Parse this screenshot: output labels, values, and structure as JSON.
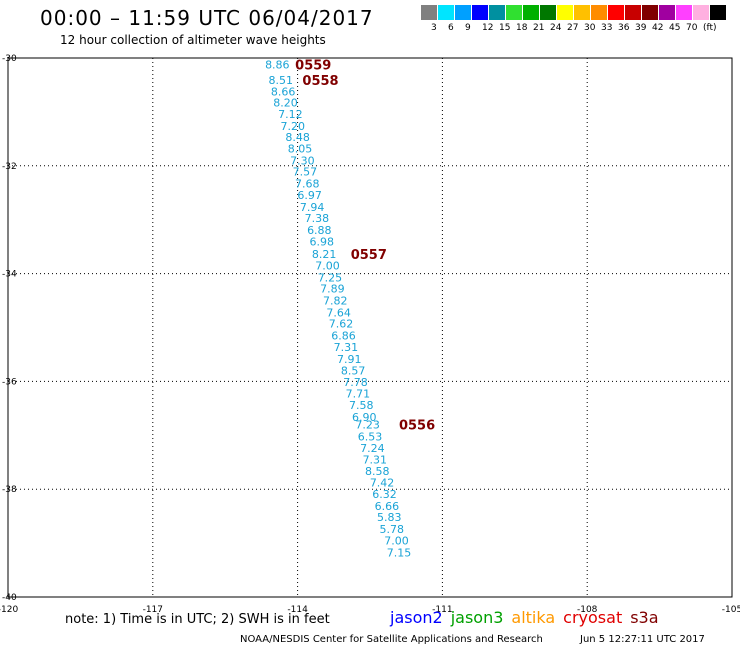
{
  "title": "00:00 – 11:59 UTC 06/04/2017",
  "subtitle": "12 hour collection of altimeter wave heights",
  "legend": {
    "colors": [
      "#808080",
      "#00e5ff",
      "#00a0ff",
      "#0000ff",
      "#0090a0",
      "#30e030",
      "#00b000",
      "#007800",
      "#ffff00",
      "#ffc000",
      "#ff8c00",
      "#ff0000",
      "#c80000",
      "#800000",
      "#a000a0",
      "#ff40ff",
      "#ffb0e0",
      "#000000"
    ],
    "labels": [
      "3",
      "6",
      "9",
      "12",
      "15",
      "18",
      "21",
      "24",
      "27",
      "30",
      "33",
      "36",
      "39",
      "42",
      "45",
      "70",
      "(ft)"
    ]
  },
  "axes": {
    "lat_ticks": [
      "-30",
      "-32",
      "-34",
      "-36",
      "-38",
      "-40"
    ],
    "lon_ticks": [
      "-120",
      "-117",
      "-114",
      "-111",
      "-108",
      "-105"
    ]
  },
  "heights": [
    {
      "v": "8.86",
      "lon": -114.42,
      "lat": -30.12
    },
    {
      "v": "8.51",
      "lon": -114.35,
      "lat": -30.41
    },
    {
      "v": "8.66",
      "lon": -114.3,
      "lat": -30.62
    },
    {
      "v": "8.20",
      "lon": -114.25,
      "lat": -30.83
    },
    {
      "v": "7.12",
      "lon": -114.15,
      "lat": -31.04
    },
    {
      "v": "7.20",
      "lon": -114.1,
      "lat": -31.26
    },
    {
      "v": "8.48",
      "lon": -114.0,
      "lat": -31.47
    },
    {
      "v": "8.05",
      "lon": -113.95,
      "lat": -31.68
    },
    {
      "v": "7.30",
      "lon": -113.9,
      "lat": -31.9
    },
    {
      "v": "7.57",
      "lon": -113.85,
      "lat": -32.11
    },
    {
      "v": "7.68",
      "lon": -113.8,
      "lat": -32.33
    },
    {
      "v": "6.97",
      "lon": -113.75,
      "lat": -32.54
    },
    {
      "v": "7.94",
      "lon": -113.7,
      "lat": -32.76
    },
    {
      "v": "7.38",
      "lon": -113.6,
      "lat": -32.97
    },
    {
      "v": "6.88",
      "lon": -113.55,
      "lat": -33.19
    },
    {
      "v": "6.98",
      "lon": -113.5,
      "lat": -33.4
    },
    {
      "v": "8.21",
      "lon": -113.45,
      "lat": -33.64
    },
    {
      "v": "7.00",
      "lon": -113.38,
      "lat": -33.85
    },
    {
      "v": "7.25",
      "lon": -113.33,
      "lat": -34.07
    },
    {
      "v": "7.89",
      "lon": -113.28,
      "lat": -34.28
    },
    {
      "v": "7.82",
      "lon": -113.22,
      "lat": -34.5
    },
    {
      "v": "7.64",
      "lon": -113.15,
      "lat": -34.72
    },
    {
      "v": "7.62",
      "lon": -113.1,
      "lat": -34.93
    },
    {
      "v": "6.86",
      "lon": -113.05,
      "lat": -35.15
    },
    {
      "v": "7.31",
      "lon": -113.0,
      "lat": -35.36
    },
    {
      "v": "7.91",
      "lon": -112.93,
      "lat": -35.58
    },
    {
      "v": "8.57",
      "lon": -112.85,
      "lat": -35.8
    },
    {
      "v": "7.78",
      "lon": -112.8,
      "lat": -36.01
    },
    {
      "v": "7.71",
      "lon": -112.75,
      "lat": -36.22
    },
    {
      "v": "7.58",
      "lon": -112.68,
      "lat": -36.44
    },
    {
      "v": "6.90",
      "lon": -112.62,
      "lat": -36.66
    },
    {
      "v": "7.23",
      "lon": -112.55,
      "lat": -36.8
    },
    {
      "v": "6.53",
      "lon": -112.5,
      "lat": -37.02
    },
    {
      "v": "7.24",
      "lon": -112.45,
      "lat": -37.24
    },
    {
      "v": "7.31",
      "lon": -112.4,
      "lat": -37.45
    },
    {
      "v": "8.58",
      "lon": -112.35,
      "lat": -37.66
    },
    {
      "v": "7.42",
      "lon": -112.25,
      "lat": -37.88
    },
    {
      "v": "6.32",
      "lon": -112.2,
      "lat": -38.09
    },
    {
      "v": "6.66",
      "lon": -112.15,
      "lat": -38.31
    },
    {
      "v": "5.83",
      "lon": -112.1,
      "lat": -38.52
    },
    {
      "v": "5.78",
      "lon": -112.05,
      "lat": -38.74
    },
    {
      "v": "7.00",
      "lon": -111.95,
      "lat": -38.95
    },
    {
      "v": "7.15",
      "lon": -111.9,
      "lat": -39.17
    }
  ],
  "passes": [
    {
      "label": "0559",
      "lon": -114.05,
      "lat": -30.12
    },
    {
      "label": "0558",
      "lon": -113.9,
      "lat": -30.41
    },
    {
      "label": "0557",
      "lon": -112.9,
      "lat": -33.64
    },
    {
      "label": "0556",
      "lon": -111.9,
      "lat": -36.8
    }
  ],
  "note": "note:  1) Time is in UTC;  2) SWH is in feet",
  "satellites": [
    {
      "name": "jason2",
      "color": "#0000ff"
    },
    {
      "name": "jason3",
      "color": "#00a000"
    },
    {
      "name": "altika",
      "color": "#ff9900"
    },
    {
      "name": "cryosat",
      "color": "#e00000"
    },
    {
      "name": "s3a",
      "color": "#800000"
    }
  ],
  "credit": "NOAA/NESDIS Center for Satellite Applications and Research",
  "timestamp": "Jun  5 12:27:11 UTC 2017"
}
